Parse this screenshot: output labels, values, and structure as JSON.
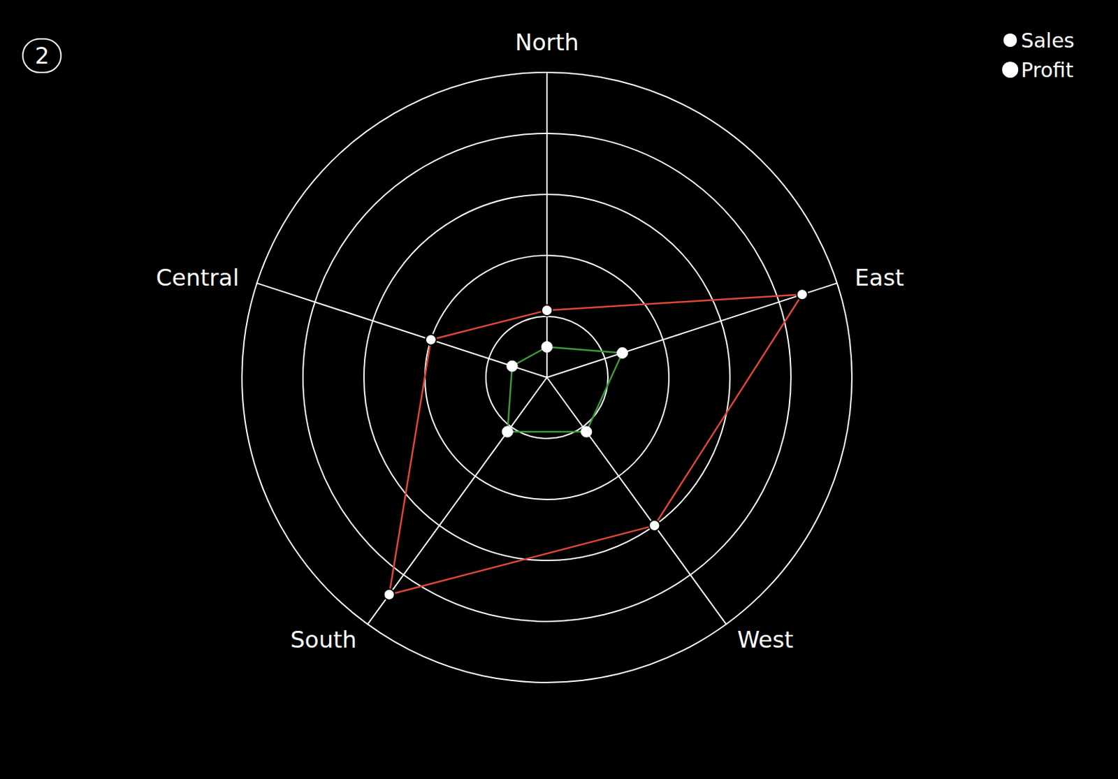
{
  "chart_data": {
    "type": "radar",
    "title": "2",
    "categories": [
      "North",
      "Central",
      "South",
      "West",
      "East"
    ],
    "series": [
      {
        "name": "Sales",
        "color": "#e0483a",
        "marker": "emptyCircle",
        "values": [
          1.1,
          2.0,
          4.4,
          3.0,
          4.4
        ]
      },
      {
        "name": "Profit",
        "color": "#3c9a3c",
        "marker": "circle",
        "values": [
          0.5,
          0.6,
          1.1,
          1.1,
          1.3
        ]
      }
    ],
    "ylim": [
      0,
      5
    ],
    "yticks": [
      0,
      1,
      2,
      3,
      4,
      5
    ],
    "tick_labels": false,
    "grid": true,
    "legend": "top-right"
  }
}
